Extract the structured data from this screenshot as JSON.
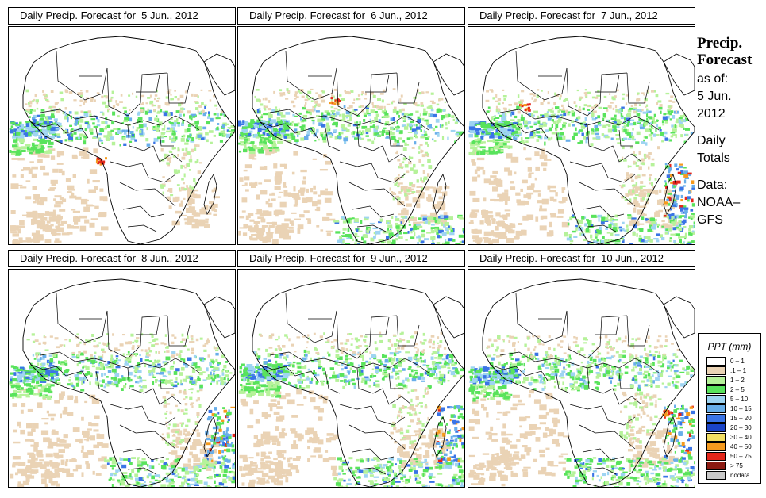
{
  "panels": [
    {
      "title": "Daily Precip. Forecast for  5 Jun., 2012"
    },
    {
      "title": "Daily Precip. Forecast for  6 Jun., 2012"
    },
    {
      "title": "Daily Precip. Forecast for  7 Jun., 2012"
    },
    {
      "title": "Daily Precip. Forecast for  8 Jun., 2012"
    },
    {
      "title": "Daily Precip. Forecast for  9 Jun., 2012"
    },
    {
      "title": "Daily Precip. Forecast for  10 Jun., 2012"
    }
  ],
  "side": {
    "title1": "Precip.",
    "title2": "Forecast",
    "asof": "as of:",
    "date1": "5 Jun.",
    "date2": "2012",
    "daily1": "Daily",
    "daily2": "Totals",
    "data1": "Data:",
    "data2": "NOAA–",
    "data3": "GFS"
  },
  "legend": {
    "title": "PPT (mm)",
    "items": [
      {
        "label": "0 – 1",
        "color": "#ffffff"
      },
      {
        "label": ".1 – 1",
        "color": "#ead3b5"
      },
      {
        "label": "1 – 2",
        "color": "#b6f29a"
      },
      {
        "label": "2 – 5",
        "color": "#59e35c"
      },
      {
        "label": "5 – 10",
        "color": "#9ed4f2"
      },
      {
        "label": "10 – 15",
        "color": "#68aeea"
      },
      {
        "label": "15 – 20",
        "color": "#3a74e6"
      },
      {
        "label": "20 – 30",
        "color": "#1a44c8"
      },
      {
        "label": "30 – 40",
        "color": "#f2de62"
      },
      {
        "label": "40 – 50",
        "color": "#f59a1e"
      },
      {
        "label": "50 – 75",
        "color": "#e4261a"
      },
      {
        "label": "> 75",
        "color": "#8c1a12"
      },
      {
        "label": "nodata",
        "color": "#c8c8c8"
      }
    ]
  }
}
